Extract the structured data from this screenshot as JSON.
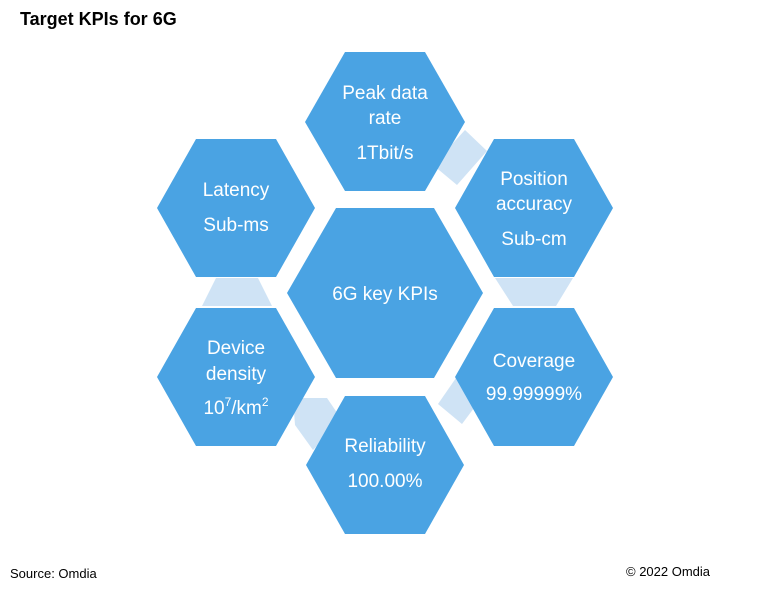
{
  "title": "Target KPIs for 6G",
  "colors": {
    "hex_fill": "#4aa3e3",
    "connector_fill": "#cfe3f5",
    "text": "#ffffff"
  },
  "center": {
    "label": "6G key KPIs"
  },
  "kpis": {
    "peak": {
      "line1": "Peak data",
      "line2": "rate",
      "value": "1Tbit/s"
    },
    "position": {
      "line1": "Position",
      "line2": "accuracy",
      "value": "Sub-cm"
    },
    "coverage": {
      "line1": "Coverage",
      "value": "99.99999%"
    },
    "reliability": {
      "line1": "Reliability",
      "value": "100.00%"
    },
    "density": {
      "line1": "Device",
      "line2": "density",
      "value_base": "10",
      "value_exp": "7",
      "value_unit": "/km",
      "value_unit_exp": "2"
    },
    "latency": {
      "line1": "Latency",
      "value": "Sub-ms"
    }
  },
  "footer": {
    "source": "Source: Omdia",
    "copyright": "© 2022 Omdia"
  }
}
